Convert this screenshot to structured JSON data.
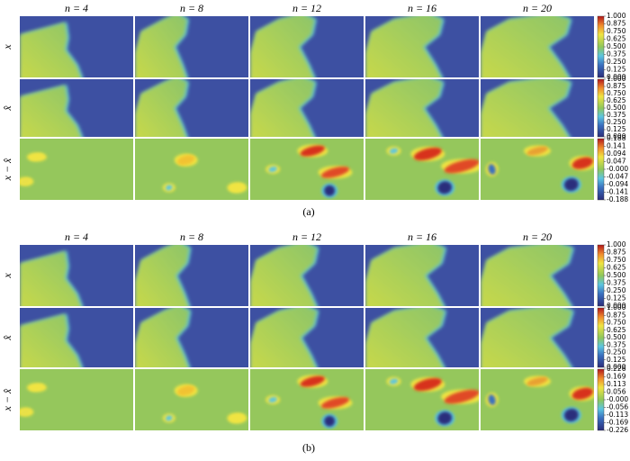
{
  "figures": [
    {
      "columns": [
        "n = 4",
        "n = 8",
        "n = 12",
        "n = 16",
        "n = 20"
      ],
      "rows": [
        "x",
        "x̂",
        "x − x̂"
      ],
      "colorbar": [
        [
          "1.000",
          "0.875",
          "0.750",
          "0.625",
          "0.500",
          "0.375",
          "0.250",
          "0.125",
          "0.000"
        ],
        [
          "1.000",
          "0.875",
          "0.750",
          "0.625",
          "0.500",
          "0.375",
          "0.250",
          "0.125",
          "0.000"
        ],
        [
          "0.188",
          "0.141",
          "0.094",
          "0.047",
          "-0.000",
          "-0.047",
          "-0.094",
          "-0.141",
          "-0.188"
        ]
      ],
      "caption": "(a)"
    },
    {
      "columns": [
        "n = 4",
        "n = 8",
        "n = 12",
        "n = 16",
        "n = 20"
      ],
      "rows": [
        "x",
        "x̂",
        "x − x̂"
      ],
      "colorbar": [
        [
          "1.000",
          "0.875",
          "0.750",
          "0.625",
          "0.500",
          "0.375",
          "0.250",
          "0.125",
          "0.000"
        ],
        [
          "1.000",
          "0.875",
          "0.750",
          "0.625",
          "0.500",
          "0.375",
          "0.250",
          "0.125",
          "0.000"
        ],
        [
          "0.226",
          "0.169",
          "0.113",
          "0.056",
          "-0.000",
          "-0.056",
          "-0.113",
          "-0.169",
          "-0.226"
        ]
      ],
      "caption": "(b)"
    }
  ]
}
